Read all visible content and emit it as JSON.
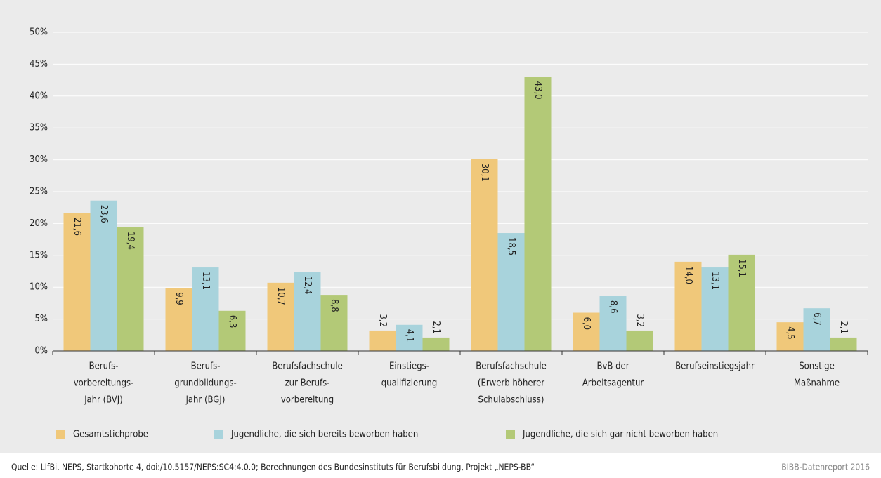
{
  "chart_data": {
    "type": "bar",
    "categories": [
      [
        "Berufs-",
        "vorbereitungs-",
        "jahr (BVJ)"
      ],
      [
        "Berufs-",
        "grundbildungs-",
        "jahr (BGJ)"
      ],
      [
        "Berufsfachschule",
        "zur Berufs-",
        "vorbereitung"
      ],
      [
        "Einstiegs-",
        "qualifizierung"
      ],
      [
        "Berufsfachschule",
        "(Erwerb höherer",
        "Schulabschluss)"
      ],
      [
        "BvB der",
        "Arbeitsagentur"
      ],
      [
        "Berufseinstiegsjahr"
      ],
      [
        "Sonstige",
        "Maßnahme"
      ]
    ],
    "series": [
      {
        "name": "Gesamtstichprobe",
        "color": "#f0c87a",
        "values": [
          21.6,
          9.9,
          10.7,
          3.2,
          30.1,
          6.0,
          14.0,
          4.5
        ],
        "value_labels": [
          "21,6",
          "9,9",
          "10,7",
          "3,2",
          "30,1",
          "6,0",
          "14,0",
          "4,5"
        ]
      },
      {
        "name": "Jugendliche, die sich bereits beworben haben",
        "color": "#a8d3dc",
        "values": [
          23.6,
          13.1,
          12.4,
          4.1,
          18.5,
          8.6,
          13.1,
          6.7
        ],
        "value_labels": [
          "23,6",
          "13,1",
          "12,4",
          "4,1",
          "18,5",
          "8,6",
          "13,1",
          "6,7"
        ]
      },
      {
        "name": "Jugendliche, die sich gar nicht beworben haben",
        "color": "#b3c977",
        "values": [
          19.4,
          6.3,
          8.8,
          2.1,
          43.0,
          3.2,
          15.1,
          2.1
        ],
        "value_labels": [
          "19,4",
          "6,3",
          "8,8",
          "2,1",
          "43,0",
          "3,2",
          "15,1",
          "2,1"
        ]
      }
    ],
    "ylim": [
      0,
      50
    ],
    "yticks": [
      {
        "value": 0,
        "label": "0%"
      },
      {
        "value": 5,
        "label": "5%"
      },
      {
        "value": 10,
        "label": "10%"
      },
      {
        "value": 15,
        "label": "15%"
      },
      {
        "value": 20,
        "label": "20%"
      },
      {
        "value": 25,
        "label": "25%"
      },
      {
        "value": 30,
        "label": "30%"
      },
      {
        "value": 35,
        "label": "35%"
      },
      {
        "value": 40,
        "label": "40%"
      },
      {
        "value": 45,
        "label": "45%"
      },
      {
        "value": 50,
        "label": "50%"
      }
    ],
    "grid": true,
    "source": "Quelle: LIfBi, NEPS, Startkohorte 4, doi:/10.5157/NEPS:SC4:4.0.0; Berechnungen des Bundesinstituts für Berufsbildung, Projekt „NEPS-BB“",
    "credit": "BIBB-Datenreport 2016"
  }
}
